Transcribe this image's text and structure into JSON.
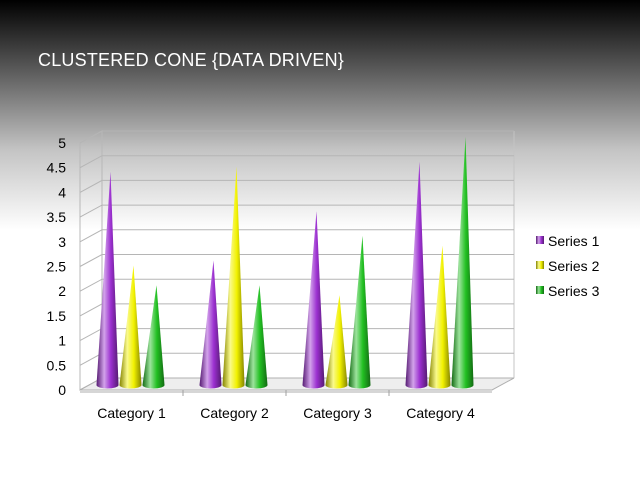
{
  "slide": {
    "title": "CLUSTERED CONE {DATA DRIVEN}"
  },
  "chart_data": {
    "type": "bar",
    "subtype": "clustered-cone-3d",
    "title": "CLUSTERED CONE {DATA DRIVEN}",
    "categories": [
      "Category 1",
      "Category 2",
      "Category 3",
      "Category 4"
    ],
    "series": [
      {
        "name": "Series 1",
        "values": [
          4.3,
          2.5,
          3.5,
          4.5
        ],
        "color": "#9b30d0"
      },
      {
        "name": "Series 2",
        "values": [
          2.4,
          4.4,
          1.8,
          2.8
        ],
        "color": "#f2f200"
      },
      {
        "name": "Series 3",
        "values": [
          2.0,
          2.0,
          3.0,
          5.0
        ],
        "color": "#22c022"
      }
    ],
    "yticks": [
      "0",
      "0.5",
      "1",
      "1.5",
      "2",
      "2.5",
      "3",
      "3.5",
      "4",
      "4.5",
      "5"
    ],
    "ylim": [
      0,
      5
    ],
    "ystep": 0.5,
    "grid": true,
    "legend": "right",
    "xlabel": "",
    "ylabel": ""
  }
}
